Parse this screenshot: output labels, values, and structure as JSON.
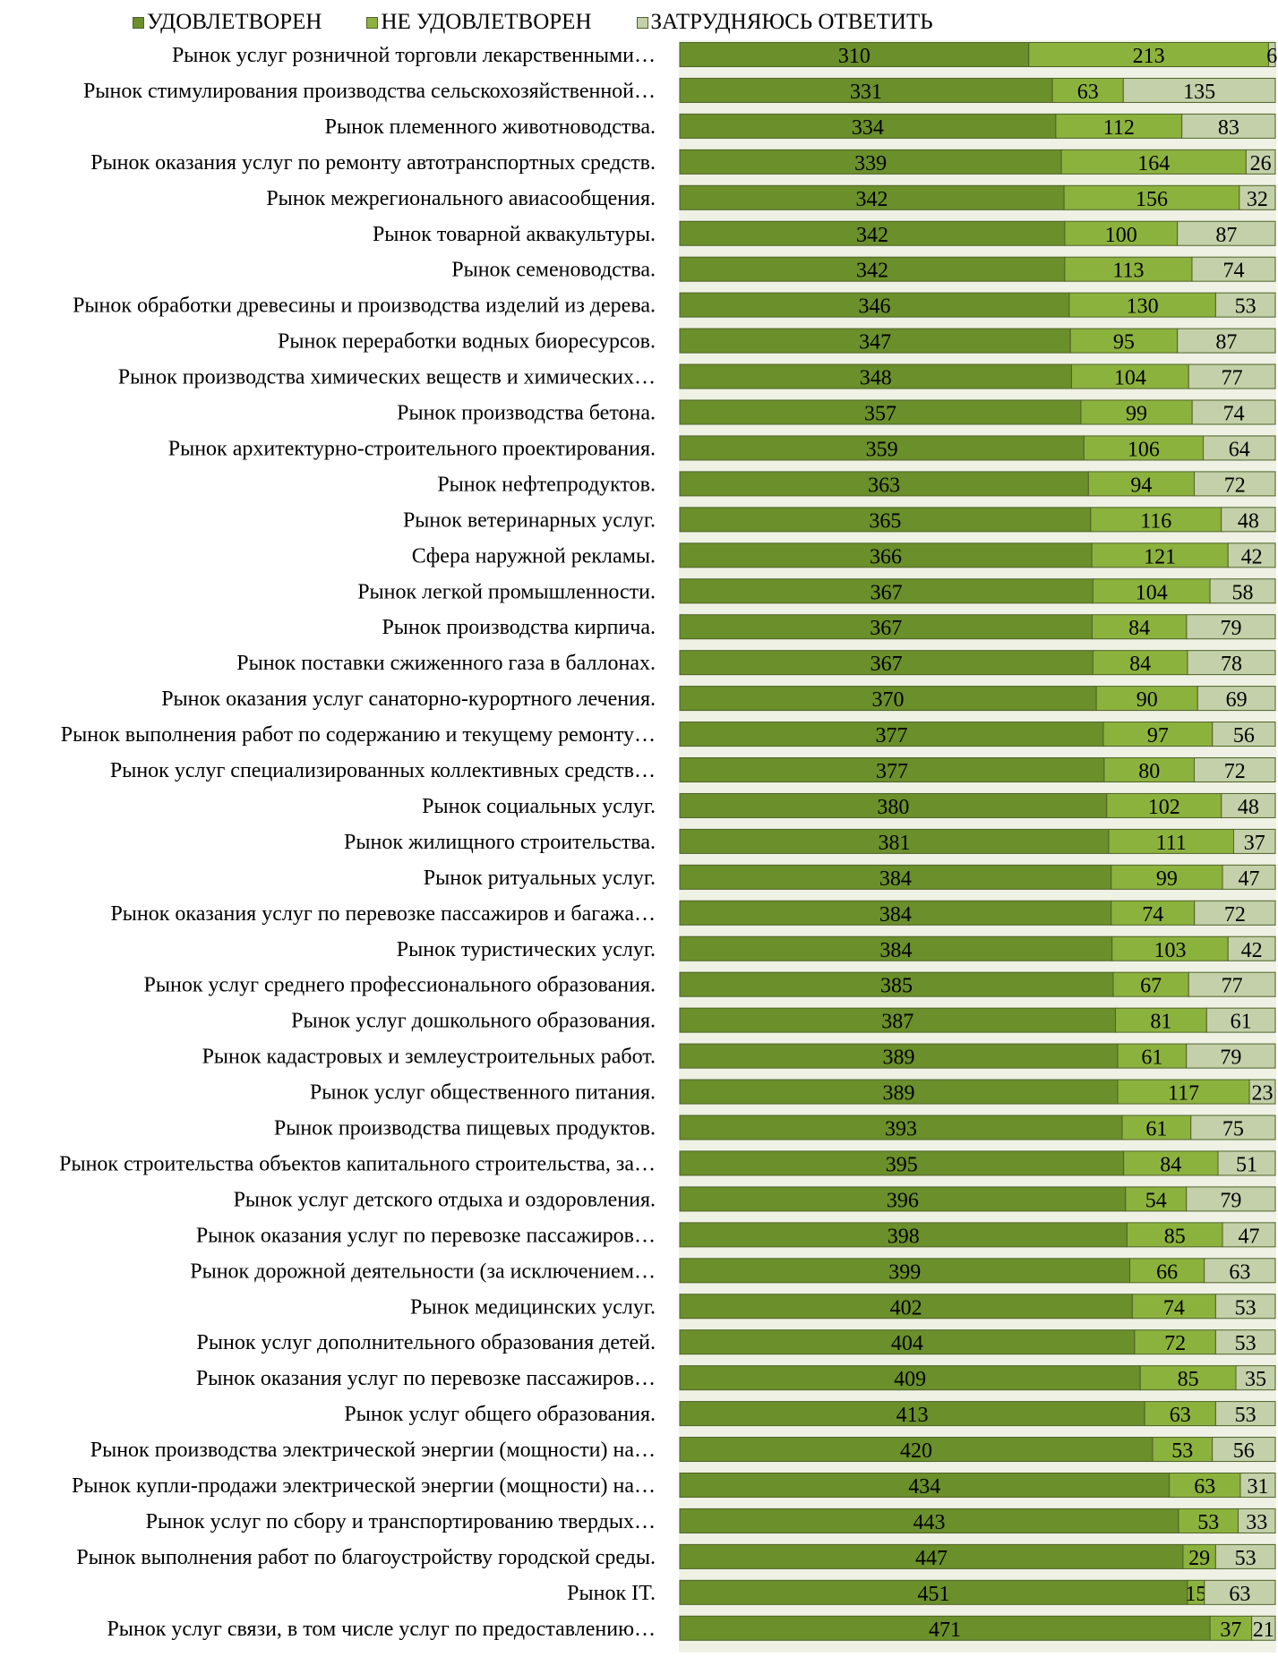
{
  "chart_data": {
    "type": "bar",
    "orientation": "horizontal",
    "stacked": true,
    "legend": {
      "placement": "top"
    },
    "grid": false,
    "colors": {
      "satisfied": "#6a8f2b",
      "not_satisfied": "#8cb23e",
      "hard_to_say": "#c3d0a9",
      "plot_background": "#eef1e4",
      "bar_border": "#4f6228"
    },
    "categories": [
      "Рынок услуг розничной торговли лекарственными…",
      "Рынок стимулирования производства сельскохозяйственной…",
      "Рынок племенного животноводства.",
      "Рынок оказания услуг по ремонту автотранспортных средств.",
      "Рынок межрегионального авиасообщения.",
      "Рынок товарной аквакультуры.",
      "Рынок семеноводства.",
      "Рынок обработки древесины и производства изделий из дерева.",
      "Рынок переработки водных биоресурсов.",
      "Рынок производства химических веществ и химических…",
      "Рынок производства бетона.",
      "Рынок архитектурно-строительного проектирования.",
      "Рынок нефтепродуктов.",
      "Рынок ветеринарных услуг.",
      "Сфера наружной рекламы.",
      "Рынок легкой промышленности.",
      "Рынок производства кирпича.",
      "Рынок поставки сжиженного газа в баллонах.",
      "Рынок оказания услуг санаторно-курортного лечения.",
      "Рынок выполнения работ по содержанию и текущему ремонту…",
      "Рынок услуг специализированных коллективных средств…",
      "Рынок социальных услуг.",
      "Рынок жилищного строительства.",
      "Рынок ритуальных услуг.",
      "Рынок оказания услуг по перевозке пассажиров и багажа…",
      "Рынок туристических услуг.",
      "Рынок услуг среднего профессионального образования.",
      "Рынок услуг дошкольного образования.",
      "Рынок кадастровых и землеустроительных работ.",
      "Рынок услуг общественного питания.",
      "Рынок производства пищевых продуктов.",
      "Рынок строительства объектов капитального строительства, за…",
      "Рынок услуг детского отдыха и оздоровления.",
      "Рынок оказания услуг по перевозке пассажиров…",
      "Рынок дорожной деятельности (за исключением…",
      "Рынок медицинских услуг.",
      "Рынок услуг дополнительного образования детей.",
      "Рынок оказания услуг по перевозке пассажиров…",
      "Рынок услуг общего образования.",
      "Рынок производства электрической энергии (мощности) на…",
      "Рынок купли-продажи электрической энергии (мощности) на…",
      "Рынок услуг по сбору и транспортированию твердых…",
      "Рынок выполнения работ по благоустройству городской среды.",
      "Рынок IT.",
      "Рынок услуг связи, в том числе услуг по предоставлению…"
    ],
    "series": [
      {
        "name": "УДОВЛЕТВОРЕН",
        "values": [
          310,
          331,
          334,
          339,
          342,
          342,
          342,
          346,
          347,
          348,
          357,
          359,
          363,
          365,
          366,
          367,
          367,
          367,
          370,
          377,
          377,
          380,
          381,
          384,
          384,
          384,
          385,
          387,
          389,
          389,
          393,
          395,
          396,
          398,
          399,
          402,
          404,
          409,
          413,
          420,
          434,
          443,
          447,
          451,
          471
        ]
      },
      {
        "name": "НЕ УДОВЛЕТВОРЕН",
        "values": [
          213,
          63,
          112,
          164,
          156,
          100,
          113,
          130,
          95,
          104,
          99,
          106,
          94,
          116,
          121,
          104,
          84,
          84,
          90,
          97,
          80,
          102,
          111,
          99,
          74,
          103,
          67,
          81,
          61,
          117,
          61,
          84,
          54,
          85,
          66,
          74,
          72,
          85,
          63,
          53,
          63,
          53,
          29,
          15,
          37
        ]
      },
      {
        "name": "ЗАТРУДНЯЮСЬ ОТВЕТИТЬ",
        "values": [
          6,
          135,
          83,
          26,
          32,
          87,
          74,
          53,
          87,
          77,
          74,
          64,
          72,
          48,
          42,
          58,
          79,
          78,
          69,
          56,
          72,
          48,
          37,
          47,
          72,
          42,
          77,
          61,
          79,
          23,
          75,
          51,
          79,
          47,
          63,
          53,
          53,
          35,
          53,
          56,
          31,
          33,
          53,
          63,
          21
        ]
      }
    ]
  }
}
